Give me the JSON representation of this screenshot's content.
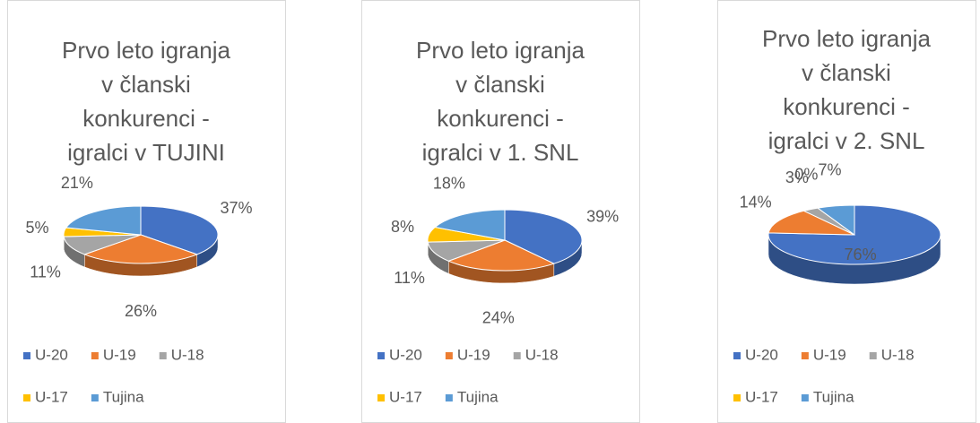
{
  "chart_data": [
    {
      "type": "pie3d",
      "title": [
        "Prvo leto igranja",
        "v članski",
        "konkurenci -",
        "igralci v TUJINI"
      ],
      "categories": [
        "U-20",
        "U-19",
        "U-18",
        "U-17",
        "Tujina"
      ],
      "values": [
        37,
        26,
        11,
        5,
        21
      ],
      "value_labels": [
        "37%",
        "26%",
        "11%",
        "5%",
        "21%"
      ],
      "colors": [
        "#4472c4",
        "#ed7d31",
        "#a5a5a5",
        "#ffc000",
        "#5b9bd5"
      ],
      "legend": "bottom"
    },
    {
      "type": "pie3d",
      "title": [
        "Prvo leto igranja",
        "v članski",
        "konkurenci -",
        "igralci v 1. SNL"
      ],
      "categories": [
        "U-20",
        "U-19",
        "U-18",
        "U-17",
        "Tujina"
      ],
      "values": [
        39,
        24,
        11,
        8,
        18
      ],
      "value_labels": [
        "39%",
        "24%",
        "11%",
        "8%",
        "18%"
      ],
      "colors": [
        "#4472c4",
        "#ed7d31",
        "#a5a5a5",
        "#ffc000",
        "#5b9bd5"
      ],
      "legend": "bottom"
    },
    {
      "type": "pie3d",
      "title": [
        "Prvo leto igranja",
        "v članski",
        "konkurenci -",
        "igralci v 2. SNL"
      ],
      "categories": [
        "U-20",
        "U-19",
        "U-18",
        "U-17",
        "Tujina"
      ],
      "values": [
        76,
        14,
        3,
        0,
        7
      ],
      "value_labels": [
        "76%",
        "14%",
        "3%",
        "0%",
        "7%"
      ],
      "colors": [
        "#4472c4",
        "#ed7d31",
        "#a5a5a5",
        "#ffc000",
        "#5b9bd5"
      ],
      "legend": "bottom"
    }
  ]
}
